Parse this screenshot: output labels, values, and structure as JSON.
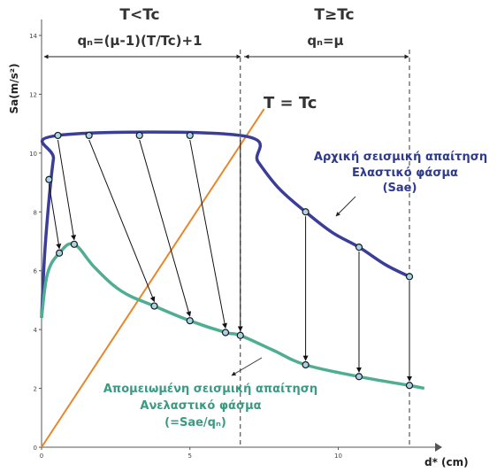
{
  "chart_data": {
    "type": "line",
    "title": "",
    "xlabel": "d* (cm)",
    "ylabel": "Sa(m/s²)",
    "xlim": [
      0,
      13
    ],
    "ylim": [
      0,
      14
    ],
    "x_ticks": [
      "0",
      "5",
      "10"
    ],
    "y_ticks": [
      "0",
      "2",
      "4",
      "6",
      "8",
      "10",
      "12",
      "14"
    ],
    "regions": [
      {
        "header": "T<Tc",
        "formula": "qₙ=(μ-1)(T/Tc)+1"
      },
      {
        "header": "T≥Tc",
        "formula": "qₙ=μ"
      }
    ],
    "tc_label": "T = Tc",
    "tc_line": {
      "x": [
        0,
        7.5
      ],
      "y": [
        0,
        11.5
      ]
    },
    "tc_dashed_x": 6.7,
    "series": [
      {
        "label_lines": [
          "Αρχική σεισμική απαίτηση",
          "Ελαστικό φάσμα",
          "(Sae)"
        ],
        "color": "#3a3e96",
        "curve_x": [
          0,
          0.1,
          0.25,
          0.4,
          0.55,
          6.7,
          7.3,
          8.0,
          8.9,
          9.8,
          10.7,
          11.6,
          12.4
        ],
        "curve_y": [
          4.4,
          6.5,
          8.4,
          9.8,
          10.6,
          10.6,
          9.7,
          8.8,
          8.0,
          7.3,
          6.8,
          6.2,
          5.8
        ],
        "points_x": [
          0.25,
          0.55,
          1.6,
          3.3,
          5.0,
          8.9,
          10.7,
          12.4
        ],
        "points_y": [
          9.1,
          10.6,
          10.6,
          10.6,
          10.6,
          8.0,
          6.8,
          5.8
        ]
      },
      {
        "label_lines": [
          "Απομειωμένη σεισμική απαίτηση",
          "Ανελαστικό φάσμα",
          "(=Sae/qₙ)"
        ],
        "color": "#4fad92",
        "curve_x": [
          0,
          0.2,
          0.6,
          1.1,
          1.8,
          2.7,
          3.8,
          5.0,
          6.2,
          6.7,
          7.8,
          8.9,
          10.7,
          12.4,
          12.9
        ],
        "curve_y": [
          4.4,
          5.9,
          6.6,
          6.9,
          6.1,
          5.3,
          4.8,
          4.3,
          3.9,
          3.8,
          3.3,
          2.8,
          2.4,
          2.1,
          2.0
        ],
        "points_x": [
          0.6,
          1.1,
          3.8,
          5.0,
          6.2,
          6.7,
          8.9,
          10.7,
          12.4
        ],
        "points_y": [
          6.6,
          6.9,
          4.8,
          4.3,
          3.9,
          3.8,
          2.8,
          2.4,
          2.1
        ]
      }
    ],
    "arrows": [
      {
        "from": [
          0.25,
          9.1
        ],
        "to": [
          0.6,
          6.6
        ]
      },
      {
        "from": [
          0.55,
          10.6
        ],
        "to": [
          1.1,
          6.9
        ]
      },
      {
        "from": [
          1.6,
          10.6
        ],
        "to": [
          3.8,
          4.8
        ]
      },
      {
        "from": [
          3.3,
          10.6
        ],
        "to": [
          5.0,
          4.3
        ]
      },
      {
        "from": [
          5.0,
          10.6
        ],
        "to": [
          6.2,
          3.9
        ]
      },
      {
        "from": [
          6.7,
          10.6
        ],
        "to": [
          6.7,
          3.8
        ]
      },
      {
        "from": [
          8.9,
          8.0
        ],
        "to": [
          8.9,
          2.8
        ]
      },
      {
        "from": [
          10.7,
          6.8
        ],
        "to": [
          10.7,
          2.4
        ]
      },
      {
        "from": [
          12.4,
          5.8
        ],
        "to": [
          12.4,
          2.1
        ]
      }
    ]
  }
}
